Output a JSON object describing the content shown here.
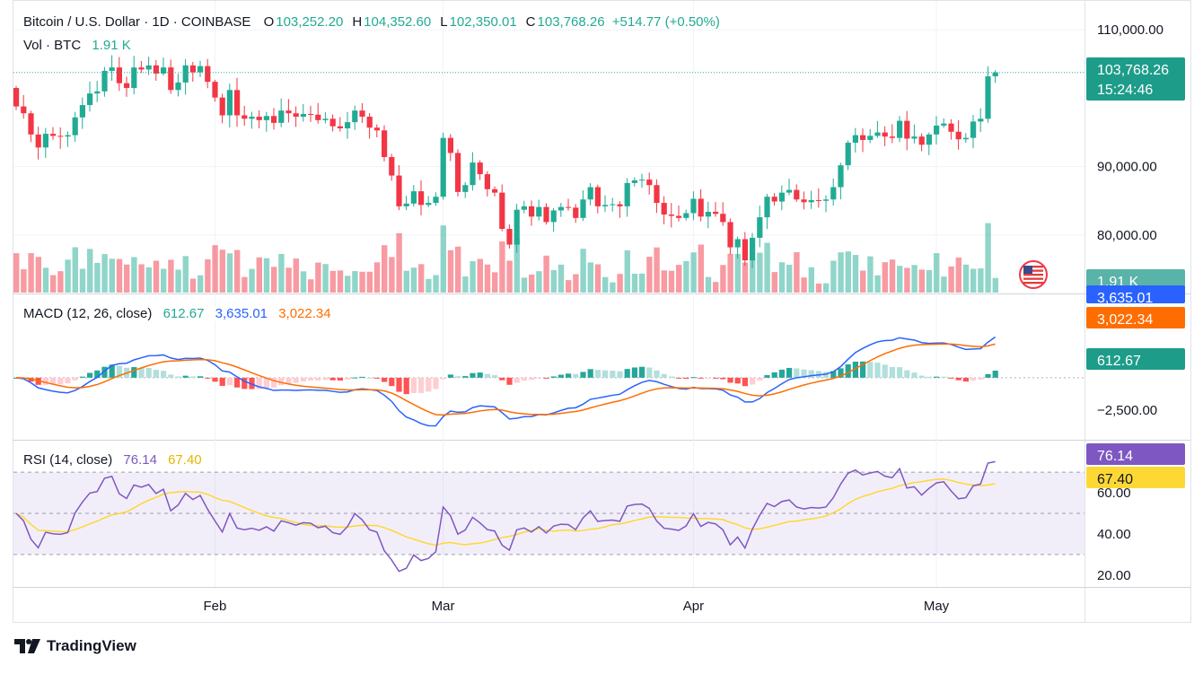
{
  "header": {
    "symbol": "Bitcoin / U.S. Dollar · 1D · COINBASE",
    "ohlc": [
      {
        "key": "O",
        "value": "103,252.20"
      },
      {
        "key": "H",
        "value": "104,352.60"
      },
      {
        "key": "L",
        "value": "102,350.01"
      },
      {
        "key": "C",
        "value": "103,768.26"
      }
    ],
    "change": "+514.77 (+0.50%)",
    "vol_label": "Vol · BTC",
    "vol_value": "1.91 K"
  },
  "macd_legend": {
    "label": "MACD (12, 26, close)",
    "hist": "612.67",
    "macd": "3,635.01",
    "signal": "3,022.34"
  },
  "rsi_legend": {
    "label": "RSI (14, close)",
    "rsi": "76.14",
    "ma": "67.40"
  },
  "price_badge": {
    "price": "103,768.26",
    "countdown": "15:24:46"
  },
  "vol_badge": "1.91 K",
  "macd_badges": {
    "macd": "3,635.01",
    "signal": "3,022.34",
    "hist": "612.67"
  },
  "rsi_badges": {
    "rsi": "76.14",
    "ma": "67.40"
  },
  "branding": "TradingView",
  "colors": {
    "up": "#22ab94",
    "down": "#f23645",
    "macd": "#2962ff",
    "signal": "#ff6d00",
    "rsi": "#7e57c2",
    "rsi_ma": "#fdd835"
  },
  "chart_data": {
    "type": "candlestick",
    "x_ticks": [
      "Feb",
      "Mar",
      "Apr",
      "May"
    ],
    "price_ticks": [
      "110,000.00",
      "90,000.00",
      "80,000.00"
    ],
    "price_range": [
      75000,
      112000
    ],
    "macd_ticks": [
      "−2,500.00"
    ],
    "rsi_ticks": [
      "60.00",
      "40.00",
      "20.00"
    ],
    "rsi_bands": [
      70,
      50,
      30
    ],
    "closes": [
      98800,
      97800,
      94700,
      92800,
      94800,
      94500,
      94400,
      94600,
      97200,
      99000,
      100700,
      101000,
      104000,
      104500,
      102200,
      101500,
      104500,
      104200,
      104800,
      103600,
      104500,
      101200,
      102300,
      104800,
      103800,
      104700,
      102400,
      100100,
      97500,
      101200,
      97500,
      97000,
      97300,
      96800,
      97400,
      96400,
      98200,
      97800,
      97300,
      97700,
      97600,
      96800,
      97000,
      95900,
      95600,
      96500,
      98200,
      97300,
      95700,
      95300,
      91400,
      88700,
      84200,
      84600,
      86400,
      84400,
      84700,
      85600,
      94200,
      92000,
      86300,
      87300,
      90600,
      88900,
      86700,
      86200,
      80900,
      78600,
      83700,
      84200,
      82700,
      84100,
      81900,
      83600,
      84100,
      84000,
      82500,
      85200,
      87000,
      84200,
      84400,
      84500,
      84200,
      87600,
      88000,
      88100,
      87300,
      84700,
      83000,
      82800,
      82500,
      83200,
      85300,
      82700,
      83400,
      83100,
      81900,
      78200,
      79400,
      76300,
      79600,
      82600,
      85600,
      84900,
      86200,
      86600,
      85200,
      84800,
      85100,
      85000,
      85200,
      87000,
      90200,
      93500,
      94600,
      93900,
      94500,
      95000,
      94400,
      94200,
      96700,
      94100,
      94400,
      93200,
      94700,
      96000,
      96300,
      95100,
      94000,
      94200,
      96600,
      97000,
      103200,
      103768
    ]
  }
}
